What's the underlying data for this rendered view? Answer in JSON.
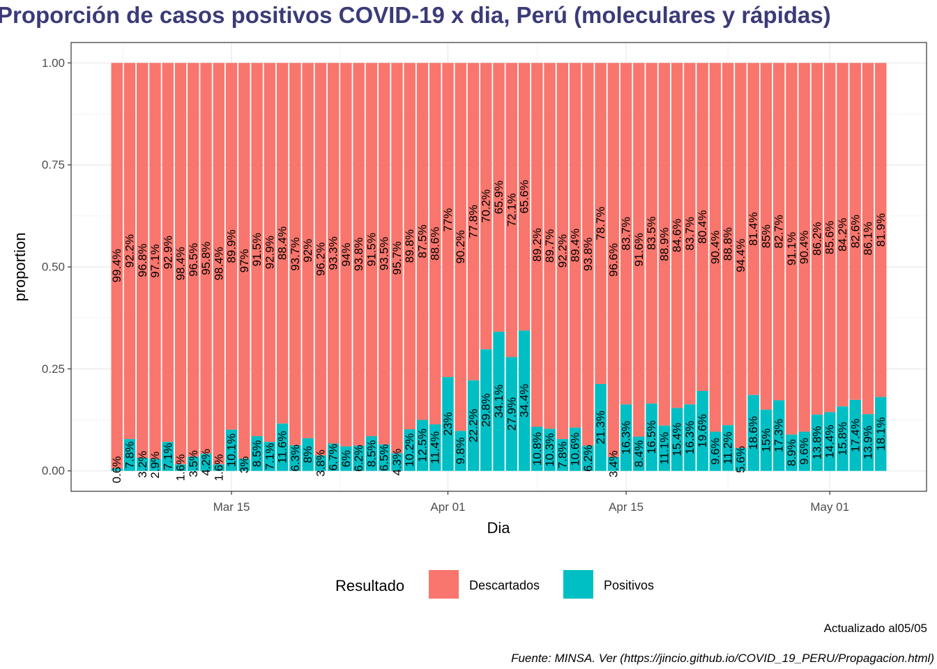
{
  "chart_data": {
    "type": "bar",
    "stacked": true,
    "title": "Proporción de casos positivos COVID-19 x dia, Perú (moleculares y rápidas)",
    "xlabel": "Dia",
    "ylabel": "proportion",
    "ylim": [
      0,
      1
    ],
    "yticks": [
      0.0,
      0.25,
      0.5,
      0.75,
      1.0
    ],
    "ytick_labels": [
      "0.00",
      "0.25",
      "0.50",
      "0.75",
      "1.00"
    ],
    "xticks": [
      {
        "date": "2020-03-15",
        "label": "Mar 15"
      },
      {
        "date": "2020-04-01",
        "label": "Apr 01"
      },
      {
        "date": "2020-04-15",
        "label": "Apr 15"
      },
      {
        "date": "2020-05-01",
        "label": "May 01"
      }
    ],
    "grid": true,
    "legend": {
      "title": "Resultado",
      "position": "bottom"
    },
    "colors": {
      "Descartados": "#F8766D",
      "Positivos": "#00BFC4"
    },
    "x": [
      "2020-03-06",
      "2020-03-07",
      "2020-03-08",
      "2020-03-09",
      "2020-03-10",
      "2020-03-11",
      "2020-03-12",
      "2020-03-13",
      "2020-03-14",
      "2020-03-15",
      "2020-03-16",
      "2020-03-17",
      "2020-03-18",
      "2020-03-19",
      "2020-03-20",
      "2020-03-21",
      "2020-03-22",
      "2020-03-23",
      "2020-03-24",
      "2020-03-25",
      "2020-03-26",
      "2020-03-27",
      "2020-03-28",
      "2020-03-29",
      "2020-03-30",
      "2020-03-31",
      "2020-04-01",
      "2020-04-02",
      "2020-04-03",
      "2020-04-04",
      "2020-04-05",
      "2020-04-06",
      "2020-04-07",
      "2020-04-08",
      "2020-04-09",
      "2020-04-10",
      "2020-04-11",
      "2020-04-12",
      "2020-04-13",
      "2020-04-14",
      "2020-04-15",
      "2020-04-16",
      "2020-04-17",
      "2020-04-18",
      "2020-04-19",
      "2020-04-20",
      "2020-04-21",
      "2020-04-22",
      "2020-04-23",
      "2020-04-24",
      "2020-04-25",
      "2020-04-26",
      "2020-04-27",
      "2020-04-28",
      "2020-04-29",
      "2020-04-30",
      "2020-05-01",
      "2020-05-02",
      "2020-05-03",
      "2020-05-04",
      "2020-05-05"
    ],
    "series": [
      {
        "name": "Descartados",
        "values": [
          0.994,
          0.922,
          0.968,
          0.971,
          0.929,
          0.984,
          0.965,
          0.958,
          0.984,
          0.899,
          0.97,
          0.915,
          0.929,
          0.884,
          0.937,
          0.92,
          0.962,
          0.933,
          0.94,
          0.938,
          0.915,
          0.935,
          0.957,
          0.898,
          0.875,
          0.886,
          0.77,
          0.902,
          0.778,
          0.702,
          0.659,
          0.721,
          0.656,
          0.892,
          0.897,
          0.922,
          0.894,
          0.938,
          0.787,
          0.966,
          0.837,
          0.916,
          0.835,
          0.889,
          0.846,
          0.837,
          0.804,
          0.904,
          0.888,
          0.944,
          0.814,
          0.85,
          0.827,
          0.911,
          0.904,
          0.862,
          0.856,
          0.842,
          0.826,
          0.861,
          0.819
        ],
        "labels": [
          "99.4%",
          "92.2%",
          "96.8%",
          "97.1%",
          "92.9%",
          "98.4%",
          "96.5%",
          "95.8%",
          "98.4%",
          "89.9%",
          "97%",
          "91.5%",
          "92.9%",
          "88.4%",
          "93.7%",
          "92%",
          "96.2%",
          "93.3%",
          "94%",
          "93.8%",
          "91.5%",
          "93.5%",
          "95.7%",
          "89.8%",
          "87.5%",
          "88.6%",
          "77%",
          "90.2%",
          "77.8%",
          "70.2%",
          "65.9%",
          "72.1%",
          "65.6%",
          "89.2%",
          "89.7%",
          "92.2%",
          "89.4%",
          "93.8%",
          "78.7%",
          "96.6%",
          "83.7%",
          "91.6%",
          "83.5%",
          "88.9%",
          "84.6%",
          "83.7%",
          "80.4%",
          "90.4%",
          "88.8%",
          "94.4%",
          "81.4%",
          "85%",
          "82.7%",
          "91.1%",
          "90.4%",
          "86.2%",
          "85.6%",
          "84.2%",
          "82.6%",
          "86.1%",
          "81.9%"
        ]
      },
      {
        "name": "Positivos",
        "values": [
          0.006,
          0.078,
          0.032,
          0.029,
          0.071,
          0.016,
          0.035,
          0.042,
          0.016,
          0.101,
          0.03,
          0.085,
          0.071,
          0.116,
          0.063,
          0.08,
          0.038,
          0.067,
          0.06,
          0.062,
          0.085,
          0.065,
          0.043,
          0.102,
          0.125,
          0.114,
          0.23,
          0.098,
          0.222,
          0.298,
          0.341,
          0.279,
          0.344,
          0.108,
          0.103,
          0.078,
          0.106,
          0.062,
          0.213,
          0.034,
          0.163,
          0.084,
          0.165,
          0.111,
          0.154,
          0.163,
          0.196,
          0.096,
          0.112,
          0.056,
          0.186,
          0.15,
          0.173,
          0.089,
          0.096,
          0.138,
          0.144,
          0.158,
          0.174,
          0.139,
          0.181
        ],
        "labels": [
          "0.6%",
          "7.8%",
          "3.2%",
          "2.9%",
          "7.1%",
          "1.6%",
          "3.5%",
          "4.2%",
          "1.6%",
          "10.1%",
          "3%",
          "8.5%",
          "7.1%",
          "11.6%",
          "6.3%",
          "8%",
          "3.8%",
          "6.7%",
          "6%",
          "6.2%",
          "8.5%",
          "6.5%",
          "4.3%",
          "10.2%",
          "12.5%",
          "11.4%",
          "23%",
          "9.8%",
          "22.2%",
          "29.8%",
          "34.1%",
          "27.9%",
          "34.4%",
          "10.8%",
          "10.3%",
          "7.8%",
          "10.6%",
          "6.2%",
          "21.3%",
          "3.4%",
          "16.3%",
          "8.4%",
          "16.5%",
          "11.1%",
          "15.4%",
          "16.3%",
          "19.6%",
          "9.6%",
          "11.2%",
          "5.6%",
          "18.6%",
          "15%",
          "17.3%",
          "8.9%",
          "9.6%",
          "13.8%",
          "14.4%",
          "15.8%",
          "17.4%",
          "13.9%",
          "18.1%"
        ]
      }
    ],
    "annotations": [
      "Actualizado al05/05",
      "Fuente: MINSA. Ver (https://jincio.github.io/COVID_19_PERU/Propagacion.html)"
    ]
  }
}
